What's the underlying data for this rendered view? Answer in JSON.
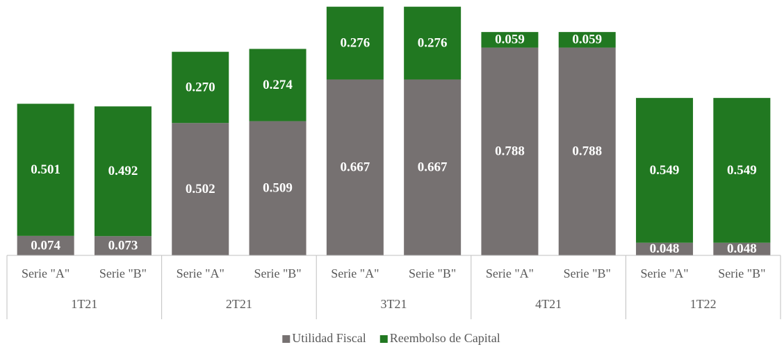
{
  "chart_data": {
    "type": "stacked-bar",
    "categories": [
      "Serie \"A\"",
      "Serie \"B\"",
      "Serie \"A\"",
      "Serie \"B\"",
      "Serie \"A\"",
      "Serie \"B\"",
      "Serie \"A\"",
      "Serie \"B\"",
      "Serie \"A\"",
      "Serie \"B\""
    ],
    "groups": [
      "1T21",
      "2T21",
      "3T21",
      "4T21",
      "1T22"
    ],
    "series": [
      {
        "name": "Utilidad Fiscal",
        "color": "#767171",
        "values": [
          0.074,
          0.073,
          0.502,
          0.509,
          0.667,
          0.667,
          0.788,
          0.788,
          0.048,
          0.048
        ],
        "value_labels": [
          "0.074",
          "0.073",
          "0.502",
          "0.509",
          "0.667",
          "0.667",
          "0.788",
          "0.788",
          "0.048",
          "0.048"
        ]
      },
      {
        "name": "Reembolso de Capital",
        "color": "#217821",
        "values": [
          0.501,
          0.492,
          0.27,
          0.274,
          0.276,
          0.276,
          0.059,
          0.059,
          0.549,
          0.549
        ],
        "value_labels": [
          "0.501",
          "0.492",
          "0.270",
          "0.274",
          "0.276",
          "0.276",
          "0.059",
          "0.059",
          "0.549",
          "0.549"
        ]
      }
    ],
    "legend": "bottom"
  }
}
